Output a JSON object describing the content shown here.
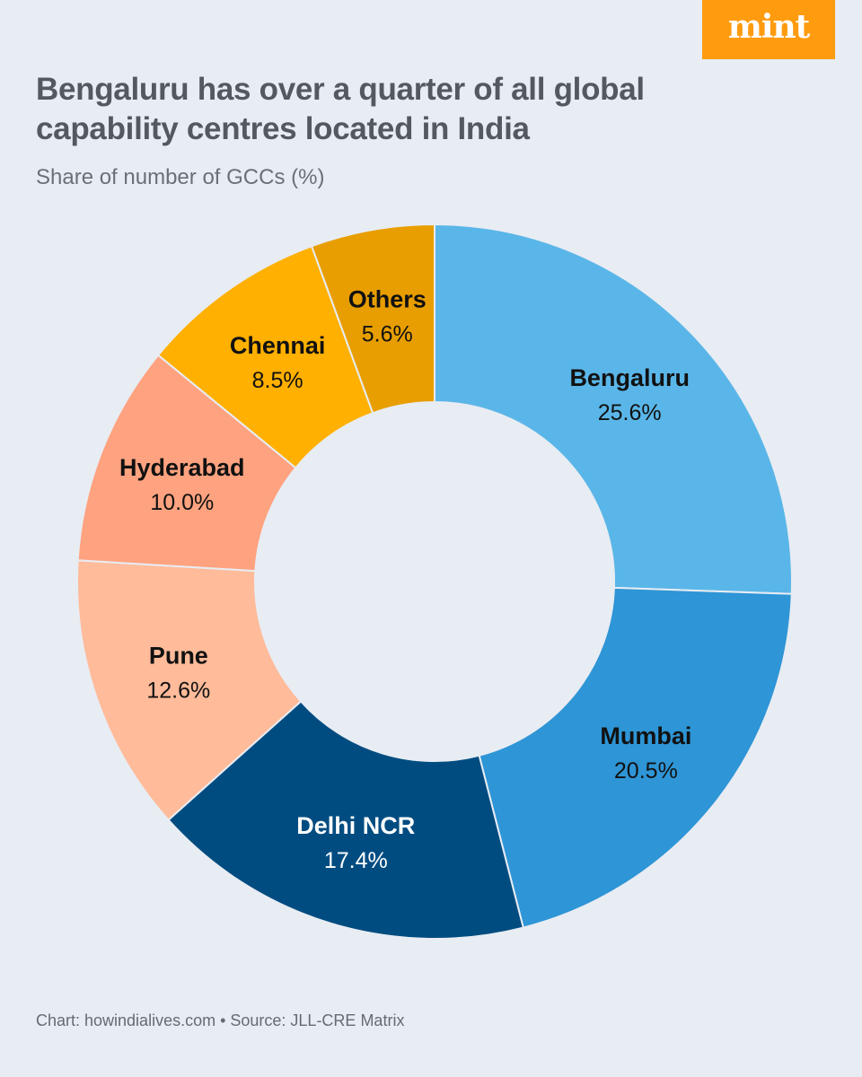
{
  "brand": {
    "logo_text": "mint",
    "logo_color": "#ff9b0f"
  },
  "header": {
    "title": "Bengaluru has over a quarter of all global capability centres located in India",
    "subtitle": "Share of number of GCCs (%)"
  },
  "footer": {
    "credit": "Chart: howindialives.com • Source: JLL-CRE Matrix"
  },
  "chart_data": {
    "type": "pie",
    "style": "donut",
    "title": "Bengaluru has over a quarter of all global capability centres located in India",
    "subtitle": "Share of number of GCCs (%)",
    "unit": "%",
    "slices": [
      {
        "label": "Bengaluru",
        "value": 25.6,
        "display": "25.6%",
        "color": "#5ab6e8",
        "text_color": "#111111"
      },
      {
        "label": "Mumbai",
        "value": 20.5,
        "display": "20.5%",
        "color": "#2e95d6",
        "text_color": "#111111"
      },
      {
        "label": "Delhi NCR",
        "value": 17.4,
        "display": "17.4%",
        "color": "#004c80",
        "text_color": "#ffffff"
      },
      {
        "label": "Pune",
        "value": 12.6,
        "display": "12.6%",
        "color": "#ffbb9a",
        "text_color": "#111111"
      },
      {
        "label": "Hyderabad",
        "value": 10.0,
        "display": "10.0%",
        "color": "#ffa27f",
        "text_color": "#111111"
      },
      {
        "label": "Chennai",
        "value": 8.5,
        "display": "8.5%",
        "color": "#ffb000",
        "text_color": "#111111"
      },
      {
        "label": "Others",
        "value": 5.6,
        "display": "5.6%",
        "color": "#e89e00",
        "text_color": "#111111"
      }
    ]
  }
}
